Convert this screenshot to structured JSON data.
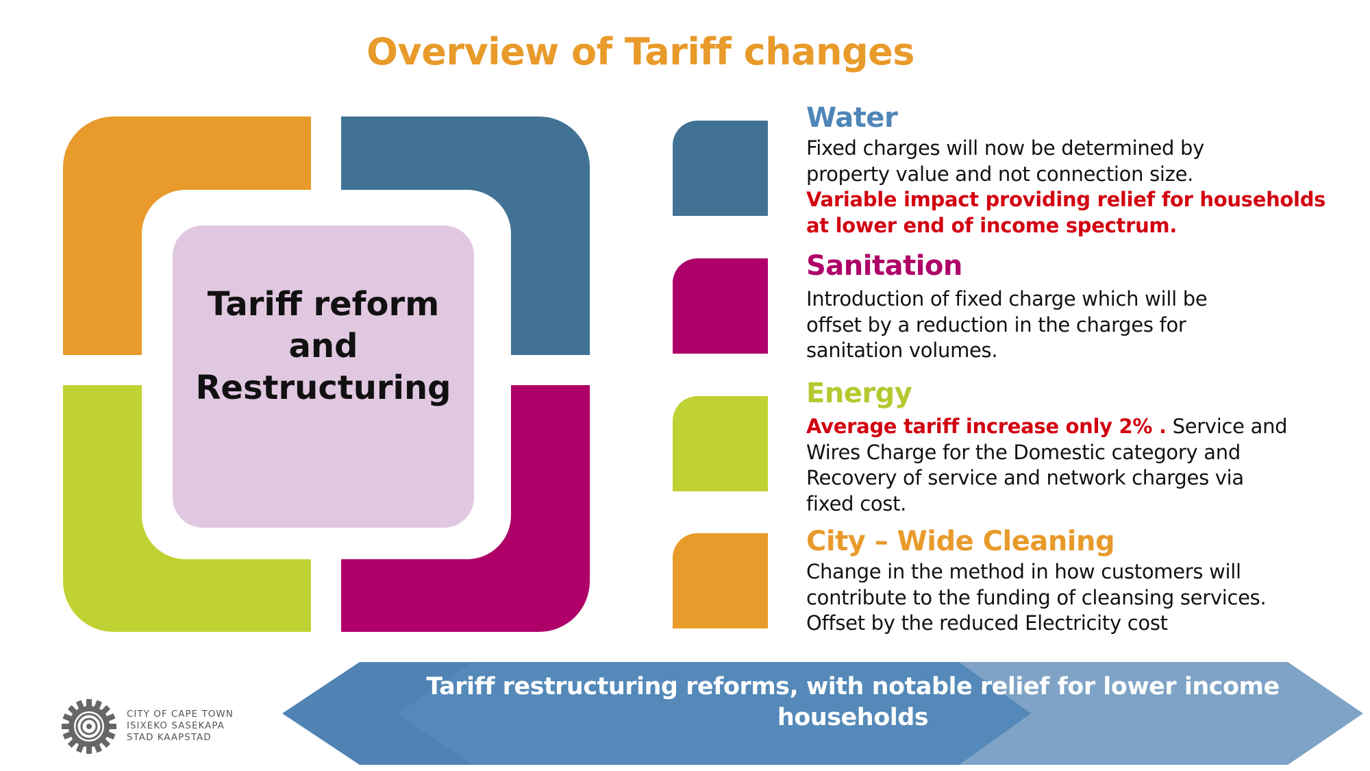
{
  "slide": {
    "title": "Overview of Tariff changes"
  },
  "center": {
    "lines": [
      "Tariff reform",
      "and",
      "Restructuring"
    ]
  },
  "colors": {
    "orange": "#E89A2A",
    "blue": "#417294",
    "green": "#C0D233",
    "magenta": "#AE0068",
    "lilac": "#E1C8E1",
    "red": "#D20010",
    "water_title": "#4F86B8"
  },
  "sections": {
    "water": {
      "title": "Water",
      "body": [
        "Fixed charges will now be determined by",
        "property value and not connection size."
      ],
      "highlight": [
        "Variable impact providing relief for households",
        "at lower end of income spectrum."
      ]
    },
    "sanitation": {
      "title": "Sanitation",
      "body": [
        "Introduction of fixed charge which will be",
        "offset by a reduction in the charges for",
        "sanitation volumes."
      ]
    },
    "energy": {
      "title": "Energy",
      "highlight": "Average tariff increase only 2% .",
      "body_first": " Service and",
      "body": [
        "Wires Charge for the Domestic category and",
        "Recovery of service and  network charges via",
        "fixed cost."
      ]
    },
    "cleaning": {
      "title": "City – Wide Cleaning",
      "body": [
        "Change in the method in how customers will",
        "contribute to the funding of cleansing services.",
        "Offset by the reduced Electricity cost"
      ]
    }
  },
  "banner": {
    "lines": [
      "Tariff restructuring reforms, with notable relief for lower income",
      "households"
    ]
  },
  "logo": {
    "icon": "city-seal-icon",
    "lines": [
      "CITY OF CAPE TOWN",
      "ISIXEKO SASEKAPA",
      "STAD KAAPSTAD"
    ]
  }
}
